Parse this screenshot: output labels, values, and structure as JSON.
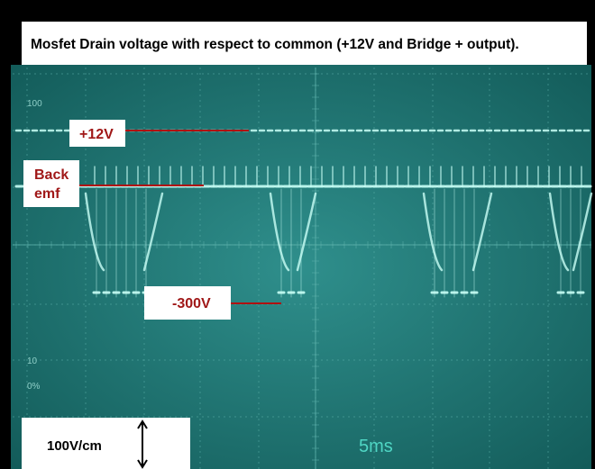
{
  "title": "Mosfet Drain voltage with respect to common (+12V and Bridge + output).",
  "annotations": {
    "plus12": "+12V",
    "back_emf": [
      "Back",
      "emf"
    ],
    "minus300": "-300V",
    "scale": "100V/cm"
  },
  "screen": {
    "timebase": "5ms",
    "graticule_top": "100",
    "graticule_low": [
      "10",
      "0%"
    ]
  }
}
